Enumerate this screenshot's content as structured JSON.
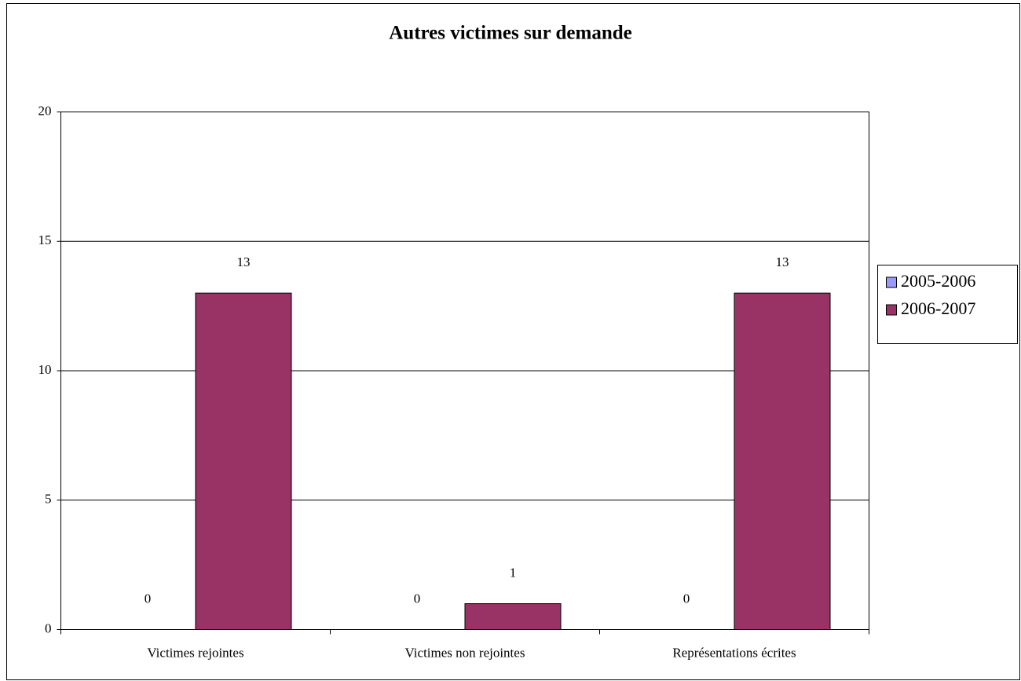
{
  "chart_data": {
    "type": "bar",
    "title": "Autres victimes sur demande",
    "categories": [
      "Victimes rejointes",
      "Victimes non rejointes",
      "Représentations écrites"
    ],
    "series": [
      {
        "name": "2005-2006",
        "color": "#9999ff",
        "values": [
          0,
          0,
          0
        ]
      },
      {
        "name": "2006-2007",
        "color": "#993366",
        "values": [
          13,
          1,
          13
        ]
      }
    ],
    "ylim": [
      0,
      20
    ],
    "yticks": [
      0,
      5,
      10,
      15,
      20
    ],
    "grid": true,
    "legend": "right"
  }
}
